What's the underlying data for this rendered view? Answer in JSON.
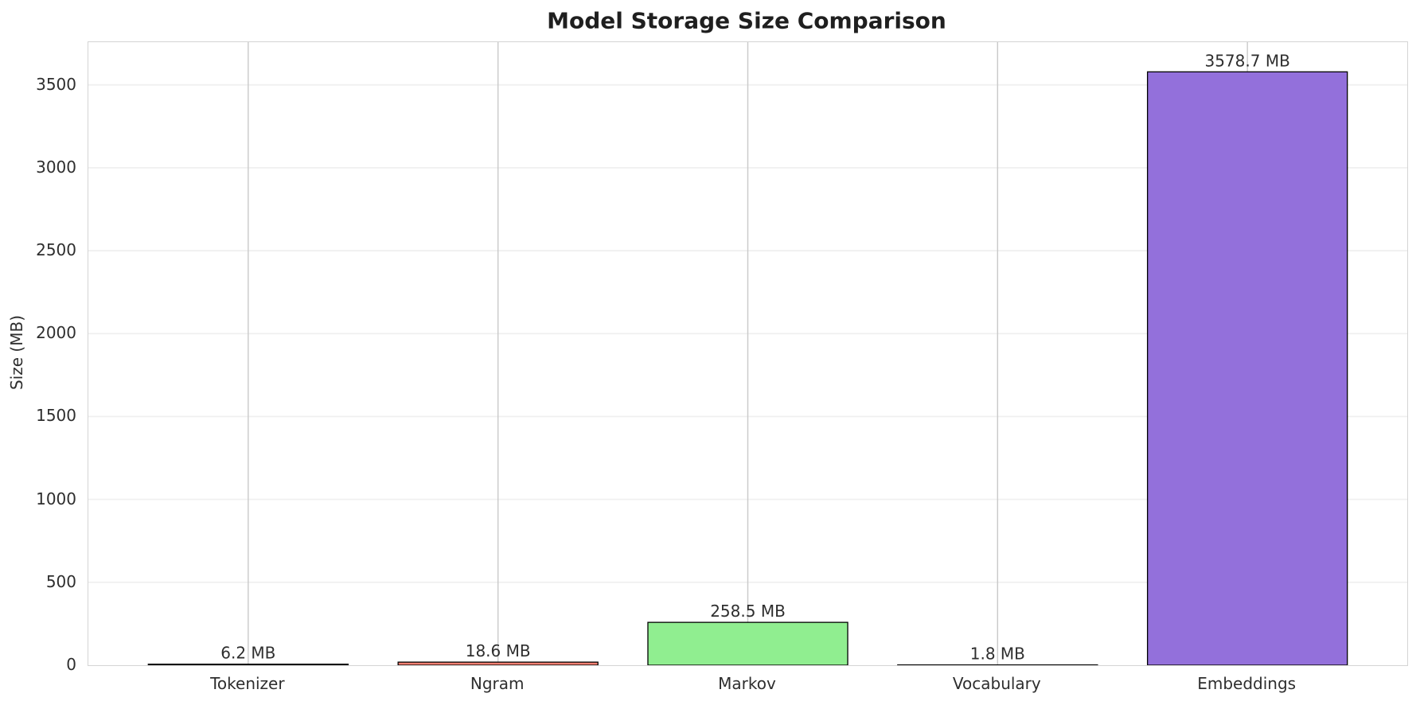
{
  "page": {
    "background_color": "#ffffff"
  },
  "chart_data": {
    "type": "bar",
    "title": "Model Storage Size Comparison",
    "xlabel": "",
    "ylabel": "Size (MB)",
    "categories": [
      "Tokenizer",
      "Ngram",
      "Markov",
      "Vocabulary",
      "Embeddings"
    ],
    "values": [
      6.2,
      18.6,
      258.5,
      1.8,
      3578.7
    ],
    "value_labels": [
      "6.2 MB",
      "18.6 MB",
      "258.5 MB",
      "1.8 MB",
      "3578.7 MB"
    ],
    "bar_colors": [
      "#87CEEB",
      "#FA8072",
      "#90EE90",
      "#DCDCDC",
      "#9370DB"
    ],
    "bar_edge_color": "#000000",
    "yticks": [
      0,
      500,
      1000,
      1500,
      2000,
      2500,
      3000,
      3500
    ],
    "ylim": [
      0,
      3757.6
    ],
    "grid": "both",
    "grid_color_horizontal": "#f0f0f0",
    "grid_color_vertical": "#c9c9c9",
    "plot_border_color": "#d4d4d4",
    "legend_position": "none",
    "text_color": "#2e2e2e",
    "title_color": "#1f1f1f"
  }
}
